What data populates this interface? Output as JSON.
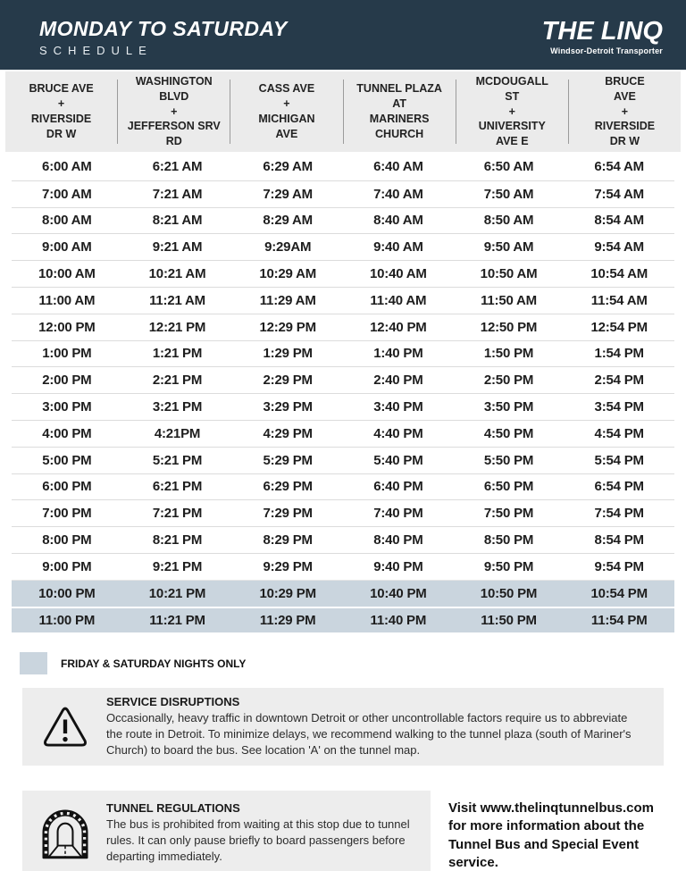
{
  "colors": {
    "navy": "#263a4a",
    "table_header_bg": "#ebebeb",
    "highlight_row": "#cad5de",
    "notice_box_bg": "#ededed",
    "text": "#1d1d1d"
  },
  "banner": {
    "title": "MONDAY TO SATURDAY",
    "subtitle": "SCHEDULE",
    "logo_name": "THE LINQ",
    "logo_tagline": "Windsor-Detroit Transporter"
  },
  "schedule": {
    "columns": [
      {
        "lines": [
          "BRUCE AVE",
          "+",
          "RIVERSIDE",
          "DR W"
        ]
      },
      {
        "lines": [
          "WASHINGTON",
          "BLVD",
          "+",
          "JEFFERSON SRV",
          "RD"
        ]
      },
      {
        "lines": [
          "CASS AVE",
          "+",
          "MICHIGAN",
          "AVE"
        ]
      },
      {
        "lines": [
          "TUNNEL PLAZA",
          "AT",
          "MARINERS",
          "CHURCH"
        ]
      },
      {
        "lines": [
          "MCDOUGALL",
          "ST",
          "+",
          "UNIVERSITY",
          "AVE E"
        ]
      },
      {
        "lines": [
          "BRUCE",
          "AVE",
          "+",
          "RIVERSIDE",
          "DR W"
        ]
      }
    ],
    "rows": [
      {
        "times": [
          "6:00 AM",
          "6:21 AM",
          "6:29 AM",
          "6:40 AM",
          "6:50 AM",
          "6:54 AM"
        ],
        "highlight": false
      },
      {
        "times": [
          "7:00 AM",
          "7:21 AM",
          "7:29 AM",
          "7:40 AM",
          "7:50 AM",
          "7:54 AM"
        ],
        "highlight": false
      },
      {
        "times": [
          "8:00 AM",
          "8:21 AM",
          "8:29 AM",
          "8:40 AM",
          "8:50 AM",
          "8:54 AM"
        ],
        "highlight": false
      },
      {
        "times": [
          "9:00 AM",
          "9:21 AM",
          "9:29AM",
          "9:40 AM",
          "9:50 AM",
          "9:54 AM"
        ],
        "highlight": false
      },
      {
        "times": [
          "10:00 AM",
          "10:21 AM",
          "10:29 AM",
          "10:40 AM",
          "10:50 AM",
          "10:54 AM"
        ],
        "highlight": false
      },
      {
        "times": [
          "11:00 AM",
          "11:21 AM",
          "11:29 AM",
          "11:40 AM",
          "11:50 AM",
          "11:54 AM"
        ],
        "highlight": false
      },
      {
        "times": [
          "12:00 PM",
          "12:21 PM",
          "12:29 PM",
          "12:40 PM",
          "12:50 PM",
          "12:54 PM"
        ],
        "highlight": false
      },
      {
        "times": [
          "1:00 PM",
          "1:21 PM",
          "1:29 PM",
          "1:40 PM",
          "1:50 PM",
          "1:54 PM"
        ],
        "highlight": false
      },
      {
        "times": [
          "2:00 PM",
          "2:21 PM",
          "2:29 PM",
          "2:40 PM",
          "2:50 PM",
          "2:54 PM"
        ],
        "highlight": false
      },
      {
        "times": [
          "3:00 PM",
          "3:21 PM",
          "3:29 PM",
          "3:40 PM",
          "3:50 PM",
          "3:54 PM"
        ],
        "highlight": false
      },
      {
        "times": [
          "4:00 PM",
          "4:21PM",
          "4:29 PM",
          "4:40 PM",
          "4:50 PM",
          "4:54 PM"
        ],
        "highlight": false
      },
      {
        "times": [
          "5:00 PM",
          "5:21 PM",
          "5:29 PM",
          "5:40 PM",
          "5:50 PM",
          "5:54 PM"
        ],
        "highlight": false
      },
      {
        "times": [
          "6:00 PM",
          "6:21 PM",
          "6:29 PM",
          "6:40 PM",
          "6:50 PM",
          "6:54 PM"
        ],
        "highlight": false
      },
      {
        "times": [
          "7:00 PM",
          "7:21 PM",
          "7:29 PM",
          "7:40 PM",
          "7:50 PM",
          "7:54 PM"
        ],
        "highlight": false
      },
      {
        "times": [
          "8:00 PM",
          "8:21 PM",
          "8:29 PM",
          "8:40 PM",
          "8:50 PM",
          "8:54 PM"
        ],
        "highlight": false
      },
      {
        "times": [
          "9:00 PM",
          "9:21 PM",
          "9:29 PM",
          "9:40 PM",
          "9:50 PM",
          "9:54 PM"
        ],
        "highlight": false
      },
      {
        "times": [
          "10:00 PM",
          "10:21 PM",
          "10:29 PM",
          "10:40 PM",
          "10:50 PM",
          "10:54 PM"
        ],
        "highlight": true
      },
      {
        "times": [
          "11:00 PM",
          "11:21 PM",
          "11:29 PM",
          "11:40 PM",
          "11:50 PM",
          "11:54 PM"
        ],
        "highlight": true
      }
    ],
    "legend_label": "FRIDAY & SATURDAY NIGHTS ONLY"
  },
  "notices": {
    "service_disruptions": {
      "heading": "SERVICE DISRUPTIONS",
      "body": "Occasionally, heavy traffic in downtown Detroit or other uncontrollable factors require us to abbreviate the route in Detroit. To minimize delays, we recommend walking to the tunnel plaza (south of Mariner's Church) to board the bus. See location 'A' on the tunnel map."
    },
    "tunnel_regulations": {
      "heading": "TUNNEL REGULATIONS",
      "body": "The bus is prohibited from waiting at this stop due to tunnel rules. It can only pause briefly to board passengers before departing immediately."
    },
    "footer_note": "Visit www.thelinqtunnelbus.com for more information about the Tunnel Bus and Special Event service."
  }
}
